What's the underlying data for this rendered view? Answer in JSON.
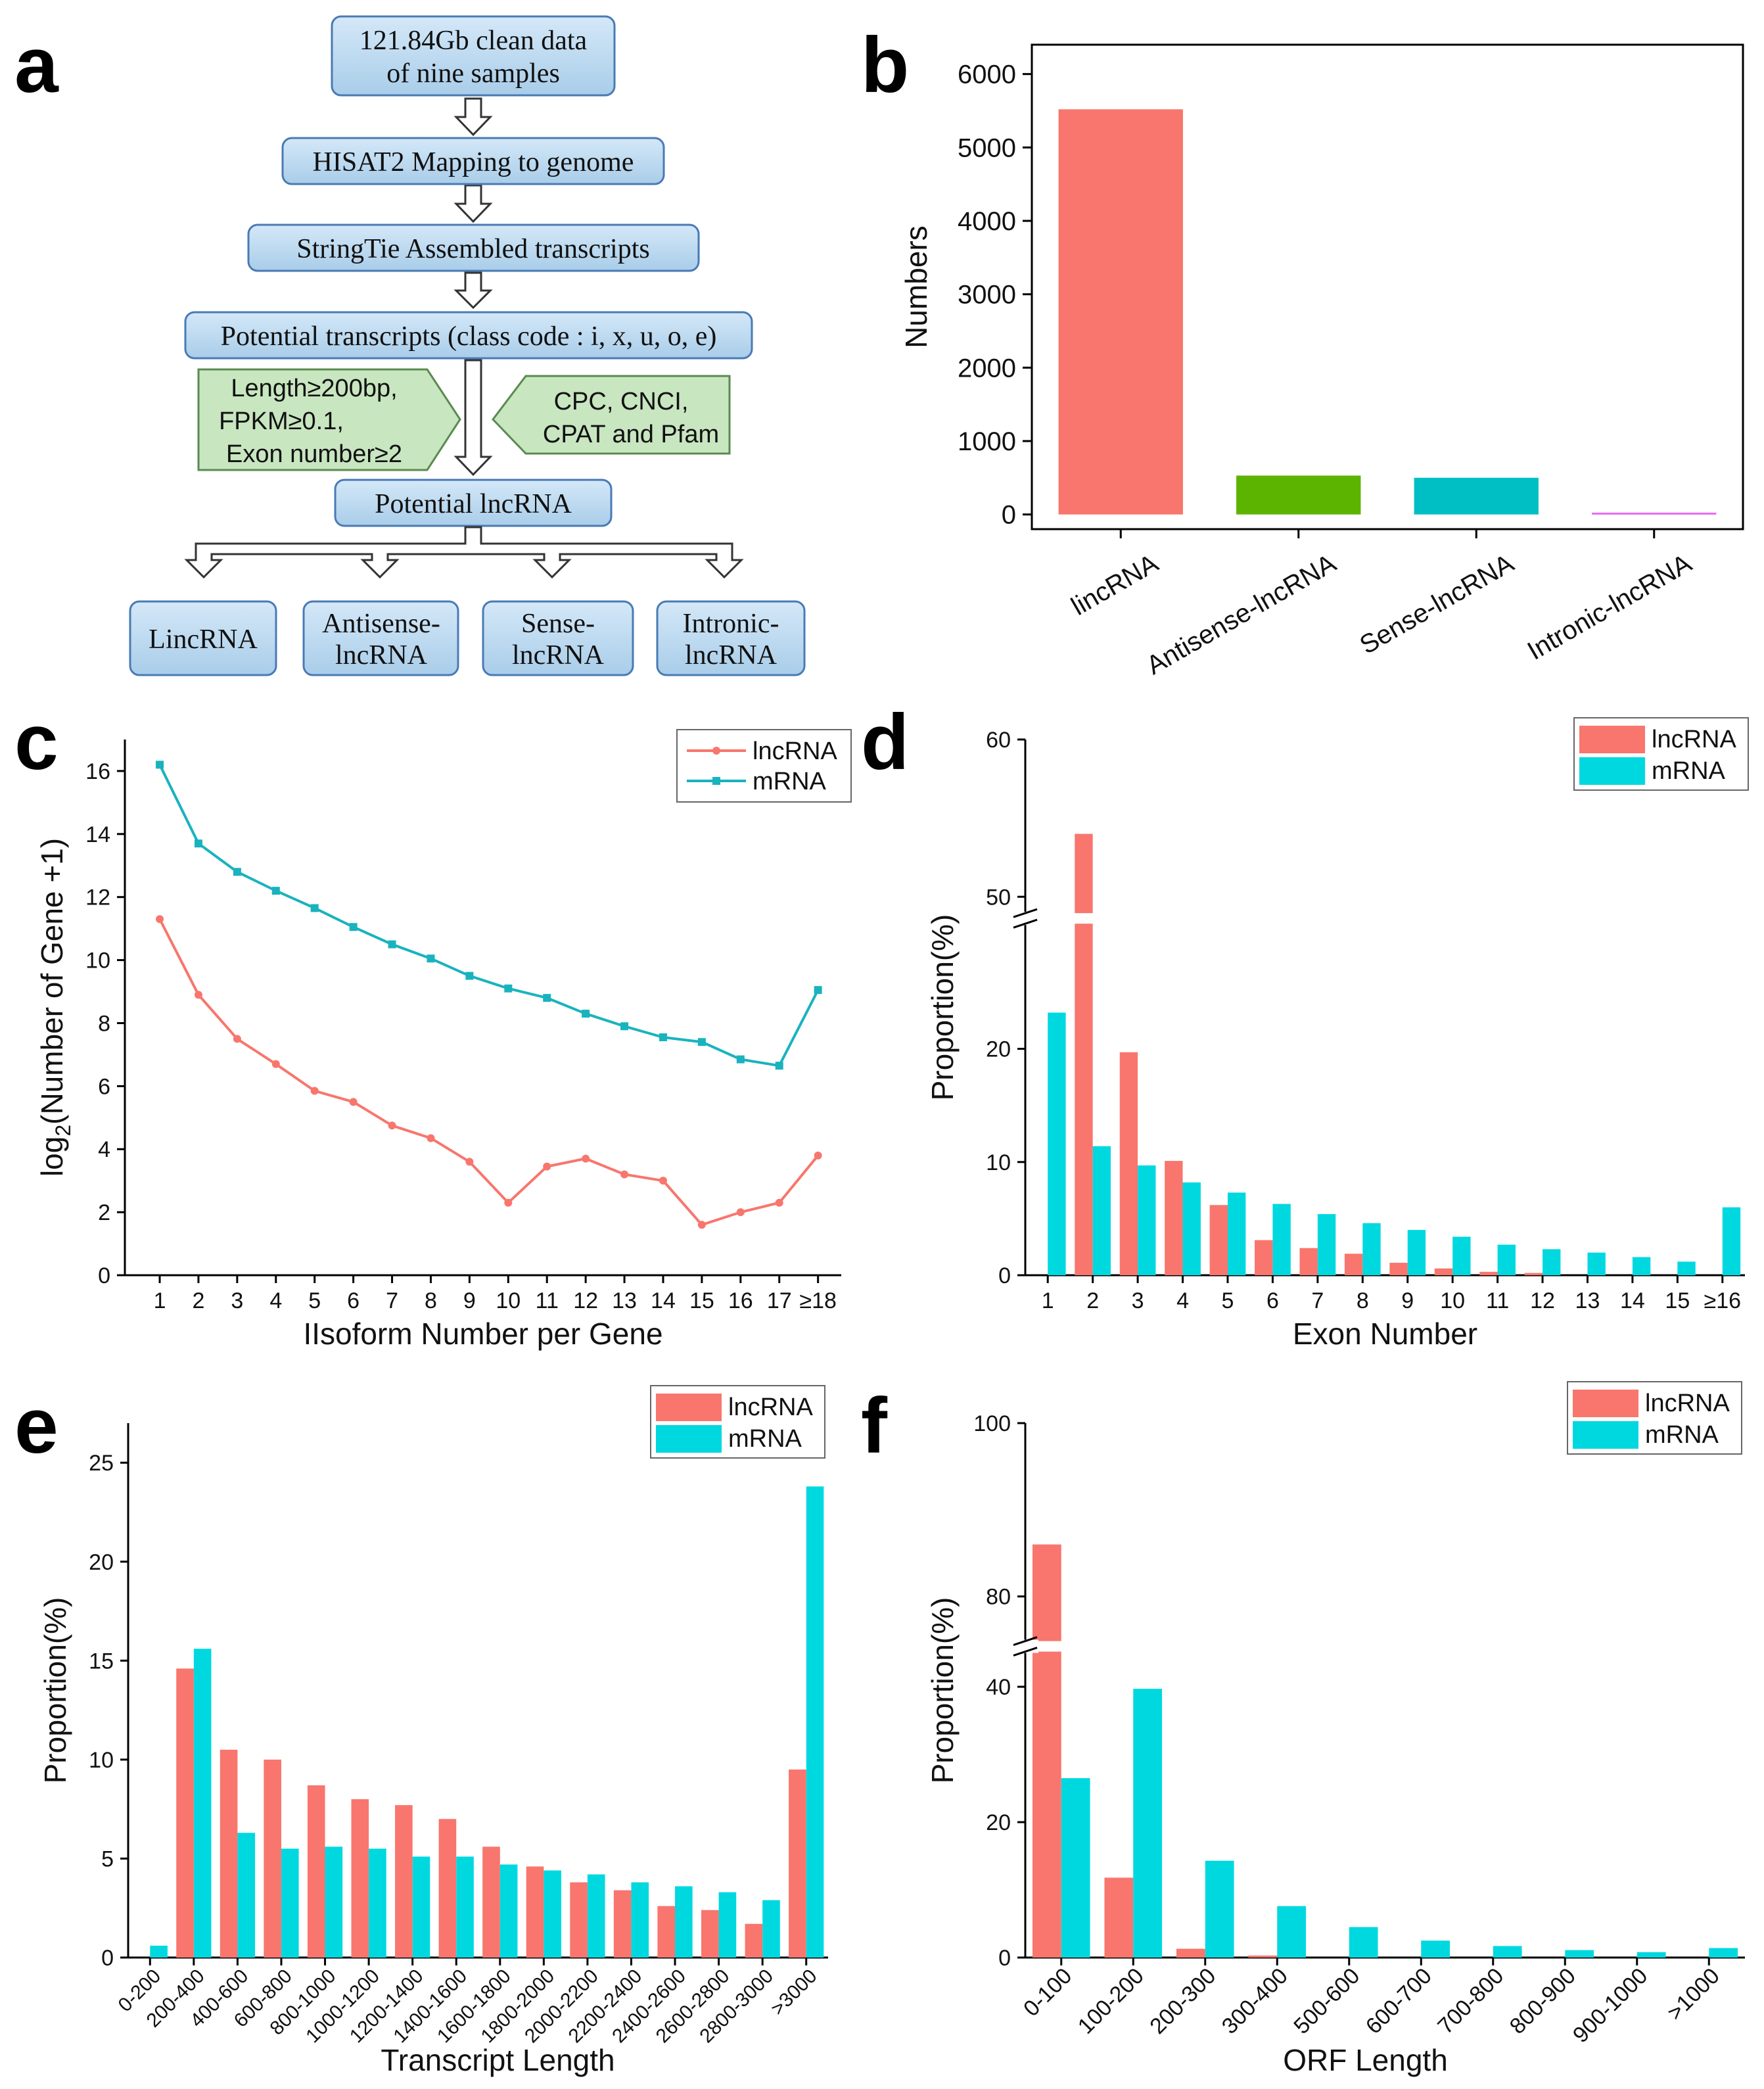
{
  "panel_labels": {
    "a": "a",
    "b": "b",
    "c": "c",
    "d": "d",
    "e": "e",
    "f": "f"
  },
  "colors": {
    "lncRNA": "#f8766d",
    "mRNA": "#00d8e0",
    "box_fill": "#bfdaf0",
    "box_stroke": "#4a7ab5",
    "green_fill": "#c8e6c0",
    "green_stroke": "#5a8a50"
  },
  "flowchart": {
    "box1_line1": "121.84Gb clean data",
    "box1_line2": "of nine samples",
    "box2": "HISAT2 Mapping to genome",
    "box3": "StringTie Assembled transcripts",
    "box4": "Potential transcripts (class code : i, x, u, o, e)",
    "filter_left_line1": "Length≥200bp,",
    "filter_left_line2": "FPKM≥0.1,",
    "filter_left_line3": "Exon number≥2",
    "filter_right_line1": "CPC, CNCI,",
    "filter_right_line2": "CPAT and Pfam",
    "box5": "Potential lncRNA",
    "out1": "LincRNA",
    "out2_line1": "Antisense-",
    "out2_line2": "lncRNA",
    "out3_line1": "Sense-",
    "out3_line2": "lncRNA",
    "out4_line1": "Intronic-",
    "out4_line2": "lncRNA"
  },
  "chart_data": [
    {
      "id": "b",
      "type": "bar",
      "title": "",
      "xlabel": "",
      "ylabel": "Numbers",
      "categories": [
        "lincRNA",
        "Antisense-lncRNA",
        "Sense-lncRNA",
        "Intronic-lncRNA"
      ],
      "values": [
        5520,
        530,
        500,
        25
      ],
      "bar_colors": [
        "#f8766d",
        "#5cb400",
        "#00bfc4",
        "#e76bf3"
      ],
      "ylim": [
        -200,
        6400
      ],
      "yticks": [
        0,
        1000,
        2000,
        3000,
        4000,
        5000,
        6000
      ]
    },
    {
      "id": "c",
      "type": "line",
      "xlabel": "IIsoform Number per Gene",
      "ylabel_main": "log",
      "ylabel_sub": "2",
      "ylabel_rest": "(Number of Gene +1)",
      "categories": [
        "1",
        "2",
        "3",
        "4",
        "5",
        "6",
        "7",
        "8",
        "9",
        "10",
        "11",
        "12",
        "13",
        "14",
        "15",
        "16",
        "17",
        "≥18"
      ],
      "series": [
        {
          "name": "lncRNA",
          "values": [
            11.3,
            8.9,
            7.5,
            6.7,
            5.85,
            5.5,
            4.75,
            4.35,
            3.6,
            2.3,
            3.45,
            3.7,
            3.2,
            3.0,
            1.6,
            2.0,
            2.3,
            3.8
          ]
        },
        {
          "name": "mRNA",
          "values": [
            16.2,
            13.7,
            12.8,
            12.2,
            11.65,
            11.05,
            10.5,
            10.05,
            9.5,
            9.1,
            8.8,
            8.3,
            7.9,
            7.55,
            7.4,
            6.85,
            6.65,
            9.05
          ]
        }
      ],
      "ylim": [
        0,
        17
      ],
      "yticks": [
        0,
        2,
        4,
        6,
        8,
        10,
        12,
        14,
        16
      ],
      "legend": "top-right"
    },
    {
      "id": "d",
      "type": "bar",
      "xlabel": "Exon Number",
      "ylabel": "Proportion(%)",
      "categories": [
        "1",
        "2",
        "3",
        "4",
        "5",
        "6",
        "7",
        "8",
        "9",
        "10",
        "11",
        "12",
        "13",
        "14",
        "15",
        "≥16"
      ],
      "series": [
        {
          "name": "lncRNA",
          "values": [
            0,
            54.0,
            19.7,
            10.1,
            6.2,
            3.1,
            2.4,
            1.9,
            1.1,
            0.6,
            0.3,
            0.2,
            0,
            0,
            0,
            0
          ]
        },
        {
          "name": "mRNA",
          "values": [
            23.2,
            11.4,
            9.7,
            8.2,
            7.3,
            6.3,
            5.4,
            4.6,
            4.0,
            3.4,
            2.7,
            2.3,
            2.0,
            1.6,
            1.2,
            6.0
          ]
        }
      ],
      "axis_break": [
        31,
        49
      ],
      "ylim": [
        0,
        60
      ],
      "yticks": [
        0,
        10,
        20,
        50,
        60
      ],
      "legend": "top-right"
    },
    {
      "id": "e",
      "type": "bar",
      "xlabel": "Transcript Length",
      "ylabel": "Proportion(%)",
      "categories": [
        "0-200",
        "200-400",
        "400-600",
        "600-800",
        "800-1000",
        "1000-1200",
        "1200-1400",
        "1400-1600",
        "1600-1800",
        "1800-2000",
        "2000-2200",
        "2200-2400",
        "2400-2600",
        "2600-2800",
        "2800-3000",
        ">3000"
      ],
      "series": [
        {
          "name": "lncRNA",
          "values": [
            0,
            14.6,
            10.5,
            10.0,
            8.7,
            8.0,
            7.7,
            7.0,
            5.6,
            4.6,
            3.8,
            3.4,
            2.6,
            2.4,
            1.7,
            9.5
          ]
        },
        {
          "name": "mRNA",
          "values": [
            0.6,
            15.6,
            6.3,
            5.5,
            5.6,
            5.5,
            5.1,
            5.1,
            4.7,
            4.4,
            4.2,
            3.8,
            3.6,
            3.3,
            2.9,
            23.8
          ]
        }
      ],
      "ylim": [
        0,
        27
      ],
      "yticks": [
        0,
        5,
        10,
        15,
        20,
        25
      ],
      "legend": "top-right"
    },
    {
      "id": "f",
      "type": "bar",
      "xlabel": "ORF Length",
      "ylabel": "Proportion(%)",
      "categories": [
        "0-100",
        "100-200",
        "200-300",
        "300-400",
        "500-600",
        "600-700",
        "700-800",
        "800-900",
        "900-1000",
        ">1000"
      ],
      "series": [
        {
          "name": "lncRNA",
          "values": [
            86.0,
            11.8,
            1.3,
            0.3,
            0,
            0,
            0,
            0,
            0,
            0
          ]
        },
        {
          "name": "mRNA",
          "values": [
            26.5,
            39.7,
            14.3,
            7.6,
            4.5,
            2.5,
            1.7,
            1.1,
            0.8,
            1.4
          ]
        }
      ],
      "axis_break": [
        45,
        75
      ],
      "ylim": [
        0,
        100
      ],
      "yticks": [
        0,
        20,
        40,
        80,
        100
      ],
      "legend": "top-right"
    }
  ]
}
